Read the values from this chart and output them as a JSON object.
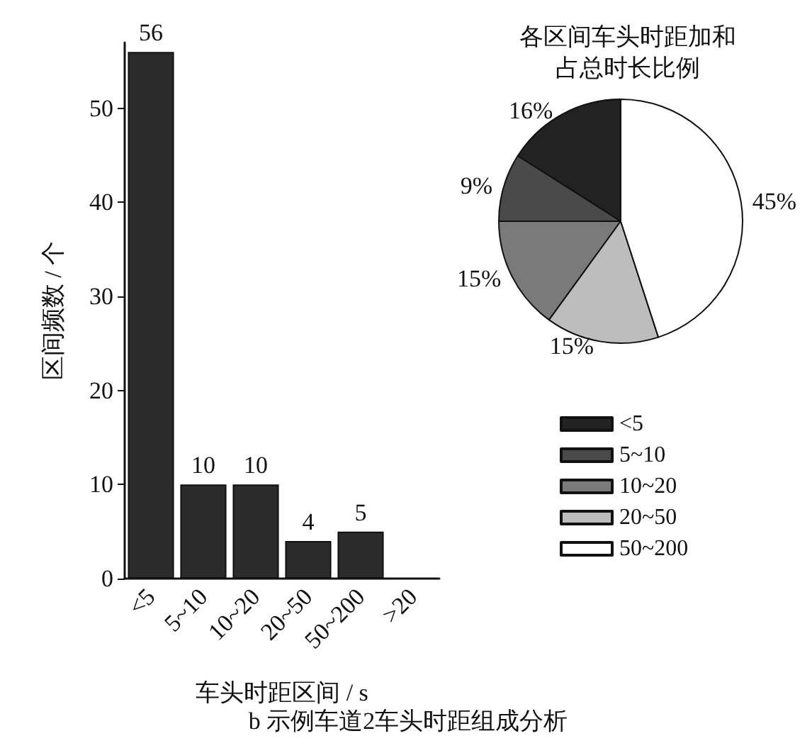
{
  "chart_data": [
    {
      "type": "bar",
      "xlabel": "车头时距区间 / s",
      "ylabel": "区间频数 / 个",
      "categories": [
        "<5",
        "5~10",
        "10~20",
        "20~50",
        "50~200",
        ">20"
      ],
      "values": [
        56,
        10,
        10,
        4,
        5,
        null
      ],
      "color": "#2b2b2b",
      "ylim": [
        0,
        57
      ],
      "yticks": [
        0,
        10,
        20,
        30,
        40,
        50
      ],
      "grid": false,
      "data_labels": true,
      "annotations": [
        "b 示例车道2车头时距组成分析"
      ]
    },
    {
      "type": "pie",
      "title": "各区间车头时距加和占总时长比例",
      "categories": [
        "<5",
        "5~10",
        "10~20",
        "20~50",
        "50~200"
      ],
      "values": [
        16,
        9,
        15,
        15,
        45
      ],
      "colors": [
        "#222222",
        "#4a4a4a",
        "#7a7a7a",
        "#bdbdbd",
        "#ffffff"
      ],
      "value_labels": [
        "16%",
        "9%",
        "15%",
        "15%",
        "45%"
      ],
      "legend": "bottom left"
    }
  ]
}
